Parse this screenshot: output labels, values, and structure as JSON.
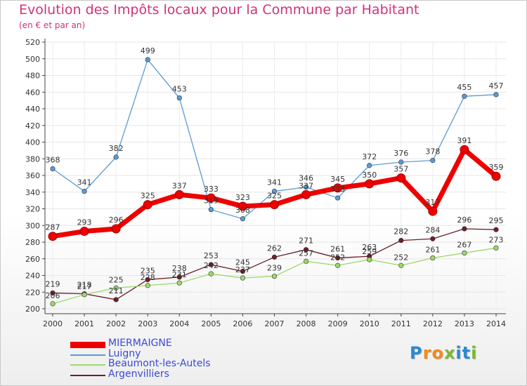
{
  "header": {
    "title": "Evolution des Impôts locaux pour la Commune par Habitant",
    "subtitle": "(en € et par an)"
  },
  "chart_data": {
    "type": "line",
    "x": [
      2000,
      2001,
      2002,
      2003,
      2004,
      2005,
      2006,
      2007,
      2008,
      2009,
      2010,
      2011,
      2012,
      2013,
      2014
    ],
    "ylim": [
      200,
      520
    ],
    "yticks": [
      200,
      220,
      240,
      260,
      280,
      300,
      320,
      340,
      360,
      380,
      400,
      420,
      440,
      460,
      480,
      500,
      520
    ],
    "grid": true,
    "legend_position": "bottom-left",
    "series": [
      {
        "name": "Argenvilliers",
        "color": "#6b1f2a",
        "values": [
          219,
          218,
          211,
          235,
          238,
          253,
          245,
          262,
          271,
          261,
          263,
          282,
          284,
          296,
          295
        ]
      },
      {
        "name": "Beaumont-les-Autels",
        "color": "#9ed86a",
        "values": [
          206,
          217,
          225,
          228,
          231,
          242,
          237,
          239,
          257,
          252,
          259,
          252,
          261,
          267,
          273
        ]
      },
      {
        "name": "Luigny",
        "color": "#5b9bd5",
        "values": [
          368,
          341,
          382,
          499,
          453,
          319,
          308,
          341,
          346,
          333,
          372,
          376,
          378,
          455,
          457
        ]
      },
      {
        "name": "MIERMAIGNE",
        "color": "#ee0000",
        "values": [
          287,
          293,
          296,
          325,
          337,
          333,
          323,
          325,
          337,
          345,
          350,
          357,
          317,
          391,
          359
        ]
      }
    ]
  },
  "legend": [
    {
      "label": "MIERMAIGNE",
      "color": "#ee0000"
    },
    {
      "label": "Luigny",
      "color": "#5b9bd5"
    },
    {
      "label": "Beaumont-les-Autels",
      "color": "#9ed86a"
    },
    {
      "label": "Argenvilliers",
      "color": "#6b1f2a"
    }
  ],
  "logo": {
    "text": "Proxiti",
    "colors": [
      "#2b8ad1",
      "#f08c1e",
      "#f08c1e",
      "#7ab833",
      "#2b8ad1",
      "#2b8ad1",
      "#7ab833"
    ]
  }
}
